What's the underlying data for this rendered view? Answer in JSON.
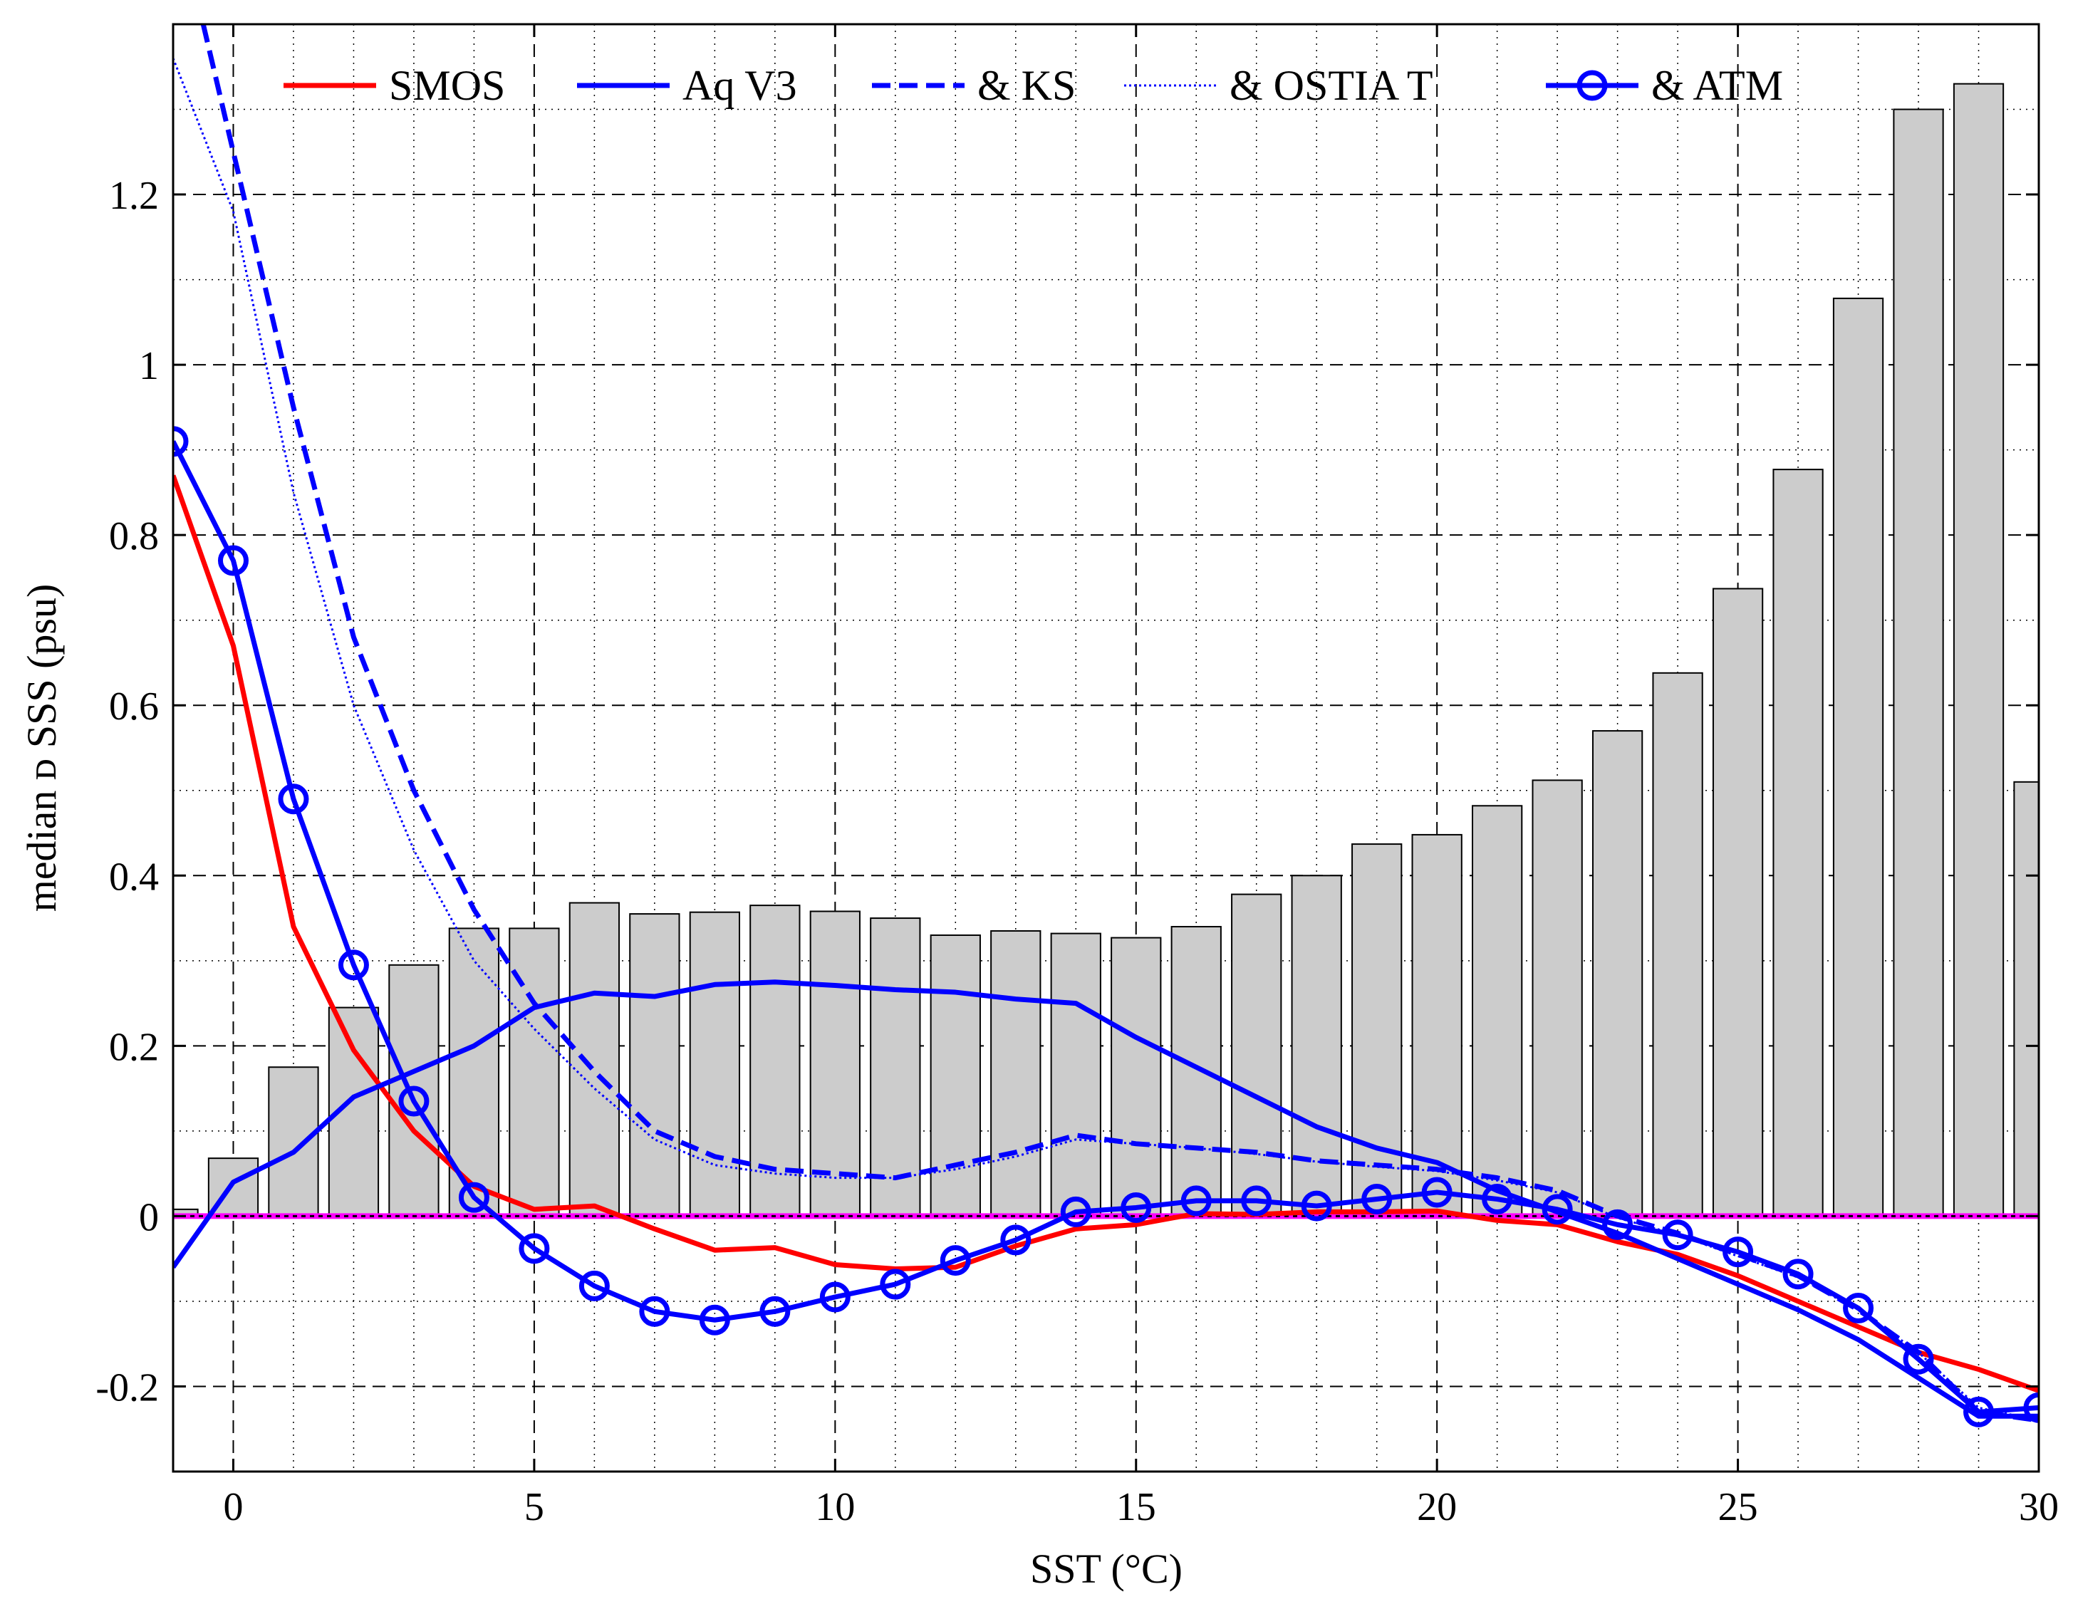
{
  "chart_data": {
    "type": "bar+line",
    "title": "",
    "xlabel": "SST (°C)",
    "ylabel": "median ᴅ SSS (psu)",
    "xlim": [
      -1,
      30
    ],
    "ylim": [
      -0.3,
      1.4
    ],
    "xticks": [
      0,
      5,
      10,
      15,
      20,
      25,
      30
    ],
    "yticks": [
      -0.2,
      0,
      0.2,
      0.4,
      0.6,
      0.8,
      1,
      1.2
    ],
    "ytick_labels": [
      "-0.2",
      "0",
      "0.2",
      "0.4",
      "0.6",
      "0.8",
      "1",
      "1.2"
    ],
    "xtick_labels": [
      "0",
      "5",
      "10",
      "15",
      "20",
      "25",
      "30"
    ],
    "grid": true,
    "reference_line": {
      "y": 0,
      "color": "#ff00ff"
    },
    "histogram": {
      "color": "#cccccc",
      "x": [
        -1,
        0,
        1,
        2,
        3,
        4,
        5,
        6,
        7,
        8,
        9,
        10,
        11,
        12,
        13,
        14,
        15,
        16,
        17,
        18,
        19,
        20,
        21,
        22,
        23,
        24,
        25,
        26,
        27,
        28,
        29,
        30
      ],
      "values": [
        0.008,
        0.068,
        0.175,
        0.245,
        0.295,
        0.338,
        0.338,
        0.368,
        0.355,
        0.357,
        0.365,
        0.358,
        0.35,
        0.33,
        0.335,
        0.332,
        0.327,
        0.34,
        0.378,
        0.4,
        0.437,
        0.448,
        0.482,
        0.512,
        0.57,
        0.638,
        0.737,
        0.877,
        1.078,
        1.3,
        1.33,
        0.51
      ]
    },
    "series": [
      {
        "name": "SMOS",
        "color": "#ff0000",
        "style": "solid",
        "marker": "none",
        "x": [
          -1,
          0,
          1,
          2,
          3,
          4,
          5,
          6,
          7,
          8,
          9,
          10,
          11,
          12,
          13,
          14,
          15,
          16,
          17,
          18,
          19,
          20,
          21,
          22,
          23,
          24,
          25,
          26,
          27,
          28,
          29,
          30
        ],
        "values": [
          0.87,
          0.67,
          0.34,
          0.195,
          0.1,
          0.035,
          0.008,
          0.012,
          -0.015,
          -0.04,
          -0.037,
          -0.057,
          -0.062,
          -0.06,
          -0.035,
          -0.015,
          -0.01,
          0.003,
          0.002,
          0.005,
          0.005,
          0.006,
          -0.005,
          -0.01,
          -0.03,
          -0.045,
          -0.07,
          -0.1,
          -0.13,
          -0.16,
          -0.18,
          -0.205
        ]
      },
      {
        "name": "Aq V3",
        "color": "#0000ff",
        "style": "solid",
        "marker": "none",
        "x": [
          -1,
          0,
          1,
          2,
          3,
          4,
          5,
          6,
          7,
          8,
          9,
          10,
          11,
          12,
          13,
          14,
          15,
          16,
          17,
          18,
          19,
          20,
          21,
          22,
          23,
          24,
          25,
          26,
          27,
          28,
          29,
          30
        ],
        "values": [
          -0.06,
          0.04,
          0.075,
          0.14,
          0.17,
          0.2,
          0.245,
          0.262,
          0.258,
          0.272,
          0.275,
          0.271,
          0.266,
          0.263,
          0.255,
          0.25,
          0.21,
          0.175,
          0.14,
          0.105,
          0.08,
          0.063,
          0.03,
          0.005,
          -0.02,
          -0.05,
          -0.08,
          -0.11,
          -0.145,
          -0.19,
          -0.235,
          -0.235
        ]
      },
      {
        "name": "& KS",
        "color": "#0000ff",
        "style": "dashed",
        "marker": "none",
        "x": [
          -0.5,
          0,
          1,
          2,
          3,
          4,
          5,
          6,
          7,
          8,
          9,
          10,
          11,
          12,
          13,
          14,
          15,
          16,
          17,
          18,
          19,
          20,
          21,
          22,
          23,
          24,
          25,
          26,
          27,
          28,
          29,
          30
        ],
        "values": [
          1.4,
          1.25,
          0.95,
          0.68,
          0.5,
          0.36,
          0.25,
          0.17,
          0.1,
          0.07,
          0.055,
          0.05,
          0.045,
          0.06,
          0.075,
          0.095,
          0.085,
          0.08,
          0.075,
          0.065,
          0.06,
          0.055,
          0.045,
          0.03,
          0.0,
          -0.02,
          -0.045,
          -0.07,
          -0.11,
          -0.16,
          -0.23,
          -0.24
        ]
      },
      {
        "name": "& OSTIA T",
        "color": "#0000ff",
        "style": "dotted",
        "marker": "none",
        "x": [
          -1,
          0,
          1,
          2,
          3,
          4,
          5,
          6,
          7,
          8,
          9,
          10,
          11,
          12,
          13,
          14,
          15,
          16,
          17,
          18,
          19,
          20,
          21,
          22,
          23,
          24,
          25,
          26,
          27,
          28,
          29,
          30
        ],
        "values": [
          1.36,
          1.18,
          0.85,
          0.6,
          0.43,
          0.3,
          0.22,
          0.15,
          0.09,
          0.06,
          0.05,
          0.045,
          0.045,
          0.055,
          0.07,
          0.09,
          0.085,
          0.08,
          0.073,
          0.064,
          0.058,
          0.053,
          0.042,
          0.028,
          -0.002,
          -0.022,
          -0.047,
          -0.072,
          -0.11,
          -0.16,
          -0.225,
          -0.24
        ]
      },
      {
        "name": "& ATM",
        "color": "#0000ff",
        "style": "solid",
        "marker": "circle",
        "x": [
          -1,
          0,
          1,
          2,
          3,
          4,
          5,
          6,
          7,
          8,
          9,
          10,
          11,
          12,
          13,
          14,
          15,
          16,
          17,
          18,
          19,
          20,
          21,
          22,
          23,
          24,
          25,
          26,
          27,
          28,
          29,
          30
        ],
        "values": [
          0.91,
          0.77,
          0.49,
          0.295,
          0.135,
          0.022,
          -0.038,
          -0.082,
          -0.112,
          -0.122,
          -0.112,
          -0.095,
          -0.08,
          -0.052,
          -0.028,
          0.005,
          0.01,
          0.018,
          0.018,
          0.012,
          0.02,
          0.028,
          0.02,
          0.008,
          -0.01,
          -0.022,
          -0.042,
          -0.068,
          -0.108,
          -0.168,
          -0.23,
          -0.225
        ]
      }
    ],
    "legend": {
      "placement": "top",
      "entries": [
        "SMOS",
        "Aq V3",
        "& KS",
        "& OSTIA T",
        "& ATM"
      ]
    }
  }
}
